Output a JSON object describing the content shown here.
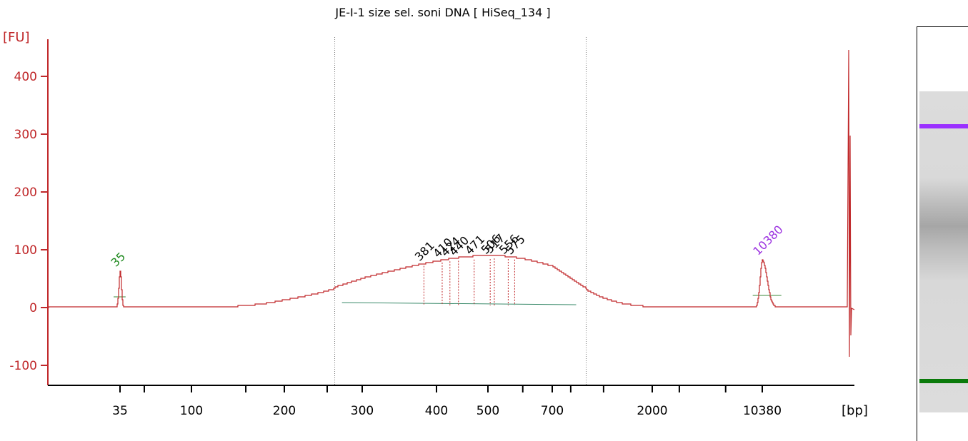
{
  "chart_data": {
    "type": "line",
    "title": "JE-I-1 size sel. soni DNA  [ HiSeq_134 ]",
    "ylabel": "[FU]",
    "xlabel": "[bp]",
    "ylim": [
      -135,
      460
    ],
    "yticks": [
      -100,
      0,
      100,
      200,
      300,
      400
    ],
    "xticks": [
      "35",
      "100",
      "200",
      "300",
      "400",
      "500",
      "700",
      "2000",
      "10380"
    ],
    "grid": false,
    "series": [
      {
        "color": "#c0282a",
        "points": [
          {
            "bp": "35",
            "fu": 0
          },
          {
            "bp": "35",
            "fu": 62
          },
          {
            "bp": "35",
            "fu": 0
          },
          {
            "bp": "300",
            "fu": 5
          },
          {
            "bp": "381",
            "fu": 72
          },
          {
            "bp": "500",
            "fu": 85
          },
          {
            "bp": "700",
            "fu": 70
          },
          {
            "bp": "2000",
            "fu": 0
          },
          {
            "bp": "10380",
            "fu": 82
          },
          {
            "bp": "10380",
            "fu": 0
          }
        ]
      }
    ],
    "peaks": [
      {
        "label": "35",
        "bp": 35,
        "fu": 62,
        "color": "#1f8a1f"
      },
      {
        "label": "381",
        "bp": 381,
        "fu": 72,
        "color": "#000000"
      },
      {
        "label": "410",
        "bp": 410,
        "fu": 78,
        "color": "#000000"
      },
      {
        "label": "424",
        "bp": 424,
        "fu": 80,
        "color": "#000000"
      },
      {
        "label": "440",
        "bp": 440,
        "fu": 81,
        "color": "#000000"
      },
      {
        "label": "471",
        "bp": 471,
        "fu": 83,
        "color": "#000000"
      },
      {
        "label": "506",
        "bp": 506,
        "fu": 84,
        "color": "#000000"
      },
      {
        "label": "517",
        "bp": 517,
        "fu": 85,
        "color": "#000000"
      },
      {
        "label": "556",
        "bp": 556,
        "fu": 84,
        "color": "#000000"
      },
      {
        "label": "575",
        "bp": 575,
        "fu": 83,
        "color": "#000000"
      },
      {
        "label": "10380",
        "bp": 10380,
        "fu": 82,
        "color": "#9b30e0"
      }
    ],
    "region_markers_bp": [
      260,
      1000
    ],
    "gel": {
      "upper_marker_color": "#9b30ff",
      "lower_marker_color": "#0a7a0a"
    }
  }
}
